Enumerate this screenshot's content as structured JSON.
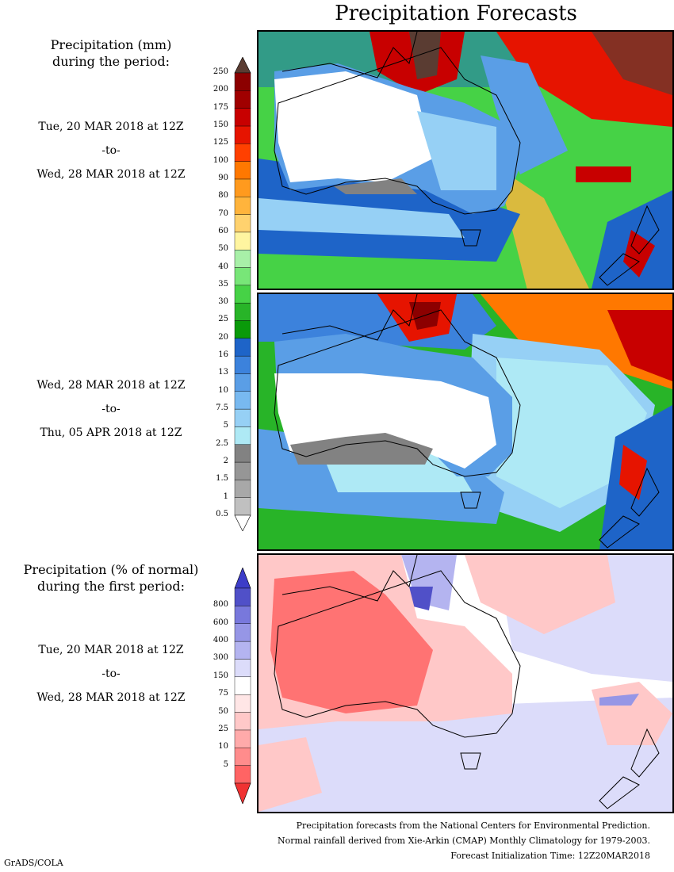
{
  "title": "Precipitation Forecasts",
  "precip_legend": {
    "heading_line1": "Precipitation (mm)",
    "heading_line2": "during the period:",
    "labels": [
      "0.5",
      "1",
      "1.5",
      "2",
      "2.5",
      "5",
      "7.5",
      "10",
      "13",
      "16",
      "20",
      "25",
      "30",
      "35",
      "40",
      "50",
      "60",
      "70",
      "80",
      "90",
      "100",
      "125",
      "150",
      "175",
      "200",
      "250"
    ],
    "colors": [
      "#c0c0c0",
      "#a8a8a8",
      "#969696",
      "#828282",
      "#aee9f5",
      "#96d0f5",
      "#78b9f0",
      "#5a9ee6",
      "#3c82dc",
      "#1e64c8",
      "#0a9a0a",
      "#28b428",
      "#46d246",
      "#78e678",
      "#a8f0a8",
      "#fff5a0",
      "#ffd26e",
      "#ffb43c",
      "#ff9a1e",
      "#ff7800",
      "#ff4000",
      "#e61400",
      "#c80000",
      "#a00000",
      "#8c0000"
    ],
    "over_color": "#5a3c32"
  },
  "period1": {
    "start": "Tue, 20 MAR 2018 at 12Z",
    "to": "-to-",
    "end": "Wed, 28 MAR 2018 at 12Z"
  },
  "period2": {
    "start": "Wed, 28 MAR 2018 at 12Z",
    "to": "-to-",
    "end": "Thu, 05 APR 2018 at 12Z"
  },
  "pct_legend": {
    "heading_line1": "Precipitation (% of normal)",
    "heading_line2": "during the first period:",
    "labels": [
      "5",
      "10",
      "25",
      "50",
      "75",
      "150",
      "300",
      "400",
      "600",
      "800"
    ],
    "colors": [
      "#ff6464",
      "#ff8c8c",
      "#ffaaaa",
      "#ffc8c8",
      "#ffe6e6",
      "#ffffff",
      "#dcdcfa",
      "#b4b4f0",
      "#9696e6",
      "#7878dc",
      "#5050c8"
    ],
    "under_color": "#f03232",
    "over_color": "#3c3cc8"
  },
  "period3": {
    "start": "Tue, 20 MAR 2018 at 12Z",
    "to": "-to-",
    "end": "Wed, 28 MAR 2018 at 12Z"
  },
  "credits": {
    "line1": "Precipitation forecasts from the National Centers for Environmental Prediction.",
    "line2": "Normal rainfall derived from Xie-Arkin (CMAP) Monthly Climatology for 1979-2003.",
    "line3": "Forecast Initialization Time: 12Z20MAR2018"
  },
  "footer": "GrADS/COLA"
}
